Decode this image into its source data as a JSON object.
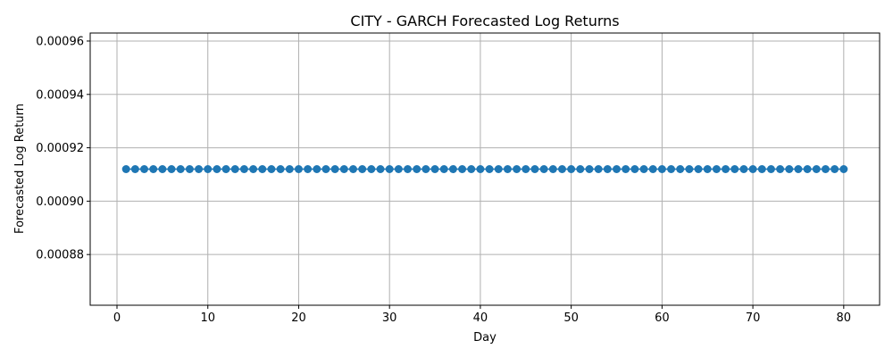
{
  "chart_data": {
    "type": "line",
    "title": "CITY - GARCH Forecasted Log Returns",
    "xlabel": "Day",
    "ylabel": "Forecasted Log Return",
    "xlim": [
      -2.95,
      83.95
    ],
    "ylim": [
      0.000861,
      0.000963
    ],
    "x_ticks": [
      0,
      10,
      20,
      30,
      40,
      50,
      60,
      70,
      80
    ],
    "x_tick_labels": [
      "0",
      "10",
      "20",
      "30",
      "40",
      "50",
      "60",
      "70",
      "80"
    ],
    "y_ticks": [
      0.00088,
      0.0009,
      0.00092,
      0.00094,
      0.00096
    ],
    "y_tick_labels": [
      "0.00088",
      "0.00090",
      "0.00092",
      "0.00094",
      "0.00096"
    ],
    "grid": true,
    "marker": "circle",
    "series": [
      {
        "color": "#1f77b4",
        "x": [
          1,
          2,
          3,
          4,
          5,
          6,
          7,
          8,
          9,
          10,
          11,
          12,
          13,
          14,
          15,
          16,
          17,
          18,
          19,
          20,
          21,
          22,
          23,
          24,
          25,
          26,
          27,
          28,
          29,
          30,
          31,
          32,
          33,
          34,
          35,
          36,
          37,
          38,
          39,
          40,
          41,
          42,
          43,
          44,
          45,
          46,
          47,
          48,
          49,
          50,
          51,
          52,
          53,
          54,
          55,
          56,
          57,
          58,
          59,
          60,
          61,
          62,
          63,
          64,
          65,
          66,
          67,
          68,
          69,
          70,
          71,
          72,
          73,
          74,
          75,
          76,
          77,
          78,
          79,
          80
        ],
        "y": [
          0.000912,
          0.000912,
          0.000912,
          0.000912,
          0.000912,
          0.000912,
          0.000912,
          0.000912,
          0.000912,
          0.000912,
          0.000912,
          0.000912,
          0.000912,
          0.000912,
          0.000912,
          0.000912,
          0.000912,
          0.000912,
          0.000912,
          0.000912,
          0.000912,
          0.000912,
          0.000912,
          0.000912,
          0.000912,
          0.000912,
          0.000912,
          0.000912,
          0.000912,
          0.000912,
          0.000912,
          0.000912,
          0.000912,
          0.000912,
          0.000912,
          0.000912,
          0.000912,
          0.000912,
          0.000912,
          0.000912,
          0.000912,
          0.000912,
          0.000912,
          0.000912,
          0.000912,
          0.000912,
          0.000912,
          0.000912,
          0.000912,
          0.000912,
          0.000912,
          0.000912,
          0.000912,
          0.000912,
          0.000912,
          0.000912,
          0.000912,
          0.000912,
          0.000912,
          0.000912,
          0.000912,
          0.000912,
          0.000912,
          0.000912,
          0.000912,
          0.000912,
          0.000912,
          0.000912,
          0.000912,
          0.000912,
          0.000912,
          0.000912,
          0.000912,
          0.000912,
          0.000912,
          0.000912,
          0.000912,
          0.000912,
          0.000912,
          0.000912
        ]
      }
    ]
  }
}
